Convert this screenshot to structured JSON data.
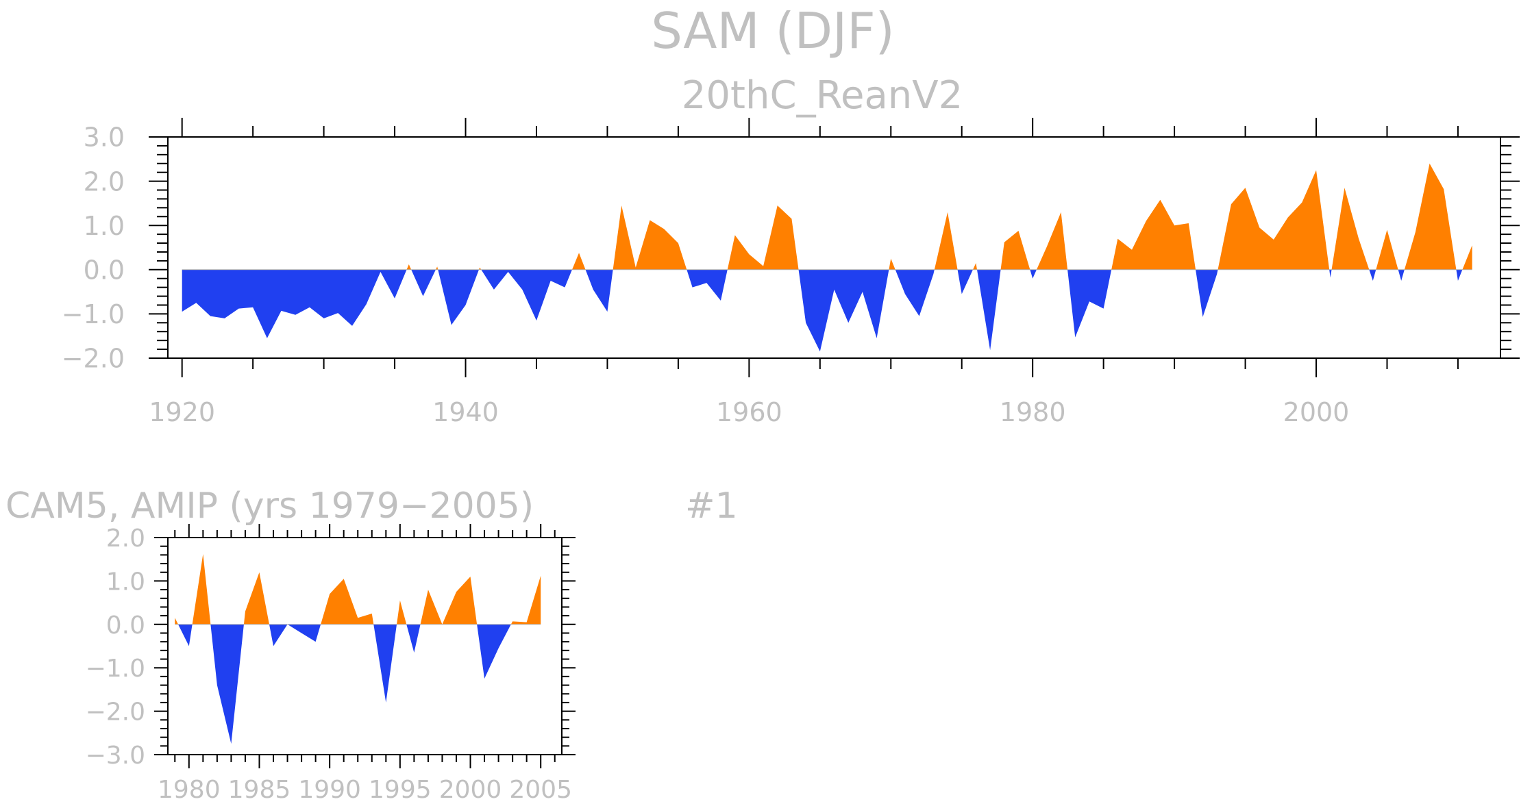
{
  "header": {
    "title": "SAM (DJF)"
  },
  "chart_data": [
    {
      "type": "area",
      "subtitle": "20thC_ReanV2",
      "xlim": [
        1919,
        2013
      ],
      "ylim": [
        -2.0,
        3.0
      ],
      "x_ticks": [
        "1920",
        "1940",
        "1960",
        "1980",
        "2000"
      ],
      "y_ticks": [
        "3.0",
        "2.0",
        "1.0",
        "0.0",
        "−1.0",
        "−2.0"
      ],
      "positive_color": "#ff8000",
      "negative_color": "#2040f0",
      "x": [
        1920,
        1921,
        1922,
        1923,
        1924,
        1925,
        1926,
        1927,
        1928,
        1929,
        1930,
        1931,
        1932,
        1933,
        1934,
        1935,
        1936,
        1937,
        1938,
        1939,
        1940,
        1941,
        1942,
        1943,
        1944,
        1945,
        1946,
        1947,
        1948,
        1949,
        1950,
        1951,
        1952,
        1953,
        1954,
        1955,
        1956,
        1957,
        1958,
        1959,
        1960,
        1961,
        1962,
        1963,
        1964,
        1965,
        1966,
        1967,
        1968,
        1969,
        1970,
        1971,
        1972,
        1973,
        1974,
        1975,
        1976,
        1977,
        1978,
        1979,
        1980,
        1981,
        1982,
        1983,
        1984,
        1985,
        1986,
        1987,
        1988,
        1989,
        1990,
        1991,
        1992,
        1993,
        1994,
        1995,
        1996,
        1997,
        1998,
        1999,
        2000,
        2001,
        2002,
        2003,
        2004,
        2005,
        2006,
        2007,
        2008,
        2009,
        2010,
        2011
      ],
      "values": [
        -0.95,
        -0.75,
        -1.05,
        -1.1,
        -0.88,
        -0.85,
        -1.55,
        -0.93,
        -1.02,
        -0.85,
        -1.1,
        -0.98,
        -1.27,
        -0.78,
        -0.05,
        -0.65,
        0.12,
        -0.6,
        0.07,
        -1.25,
        -0.8,
        0.05,
        -0.45,
        -0.05,
        -0.45,
        -1.15,
        -0.25,
        -0.4,
        0.38,
        -0.45,
        -0.95,
        1.45,
        0.05,
        1.12,
        0.92,
        0.6,
        -0.4,
        -0.3,
        -0.7,
        0.78,
        0.35,
        0.08,
        1.45,
        1.15,
        -1.2,
        -1.85,
        -0.45,
        -1.2,
        -0.5,
        -1.55,
        0.25,
        -0.55,
        -1.05,
        -0.1,
        1.3,
        -0.55,
        0.15,
        -1.82,
        0.62,
        0.88,
        -0.2,
        0.52,
        1.3,
        -1.53,
        -0.72,
        -0.88,
        0.7,
        0.45,
        1.1,
        1.58,
        1.0,
        1.05,
        -1.07,
        -0.1,
        1.48,
        1.85,
        0.95,
        0.68,
        1.18,
        1.52,
        2.25,
        -0.18,
        1.85,
        0.7,
        -0.25,
        0.9,
        -0.25,
        0.85,
        2.4,
        1.82,
        -0.25,
        0.55
      ]
    },
    {
      "type": "area",
      "subtitle": "CAM5, AMIP (yrs 1979−2005)",
      "ensemble_label": "#1",
      "xlim": [
        1978.5,
        2006.5
      ],
      "ylim": [
        -3.0,
        2.0
      ],
      "x_ticks": [
        "1980",
        "1985",
        "1990",
        "1995",
        "2000",
        "2005"
      ],
      "y_ticks": [
        "2.0",
        "1.0",
        "0.0",
        "−1.0",
        "−2.0",
        "−3.0"
      ],
      "positive_color": "#ff8000",
      "negative_color": "#2040f0",
      "x": [
        1979,
        1980,
        1981,
        1982,
        1983,
        1984,
        1985,
        1986,
        1987,
        1988,
        1989,
        1990,
        1991,
        1992,
        1993,
        1994,
        1995,
        1996,
        1997,
        1998,
        1999,
        2000,
        2001,
        2002,
        2003,
        2004,
        2005
      ],
      "values": [
        0.15,
        -0.5,
        1.62,
        -1.4,
        -2.75,
        0.3,
        1.2,
        -0.5,
        0.0,
        -0.2,
        -0.4,
        0.7,
        1.05,
        0.15,
        0.25,
        -1.8,
        0.55,
        -0.65,
        0.8,
        0.0,
        0.75,
        1.1,
        -1.25,
        -0.55,
        0.07,
        0.05,
        1.12
      ]
    }
  ]
}
